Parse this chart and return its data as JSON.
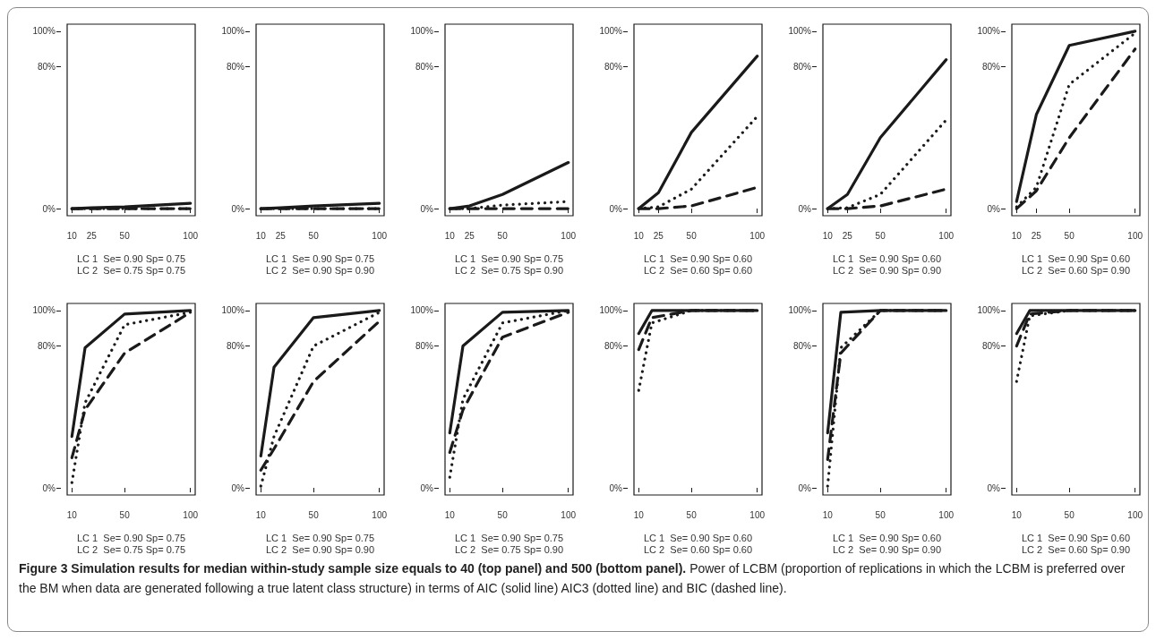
{
  "chart_data": [
    {
      "type": "line",
      "xlabel": "LC 1  Se= 0.90 Sp= 0.75\nLC 2  Se= 0.75 Sp= 0.75",
      "x": [
        10,
        25,
        50,
        100
      ],
      "xlim": [
        6.4,
        103.6
      ],
      "ylim": [
        -4,
        104
      ],
      "xticks": [
        10,
        25,
        50,
        100
      ],
      "yticks": [
        {
          "value": 0,
          "label": "0%"
        },
        {
          "value": 80,
          "label": "80%"
        },
        {
          "value": 100,
          "label": "100%"
        }
      ],
      "grid": false,
      "marker": "none",
      "series": [
        {
          "color": "#1a1a1a",
          "line_style": "solid",
          "values": [
            0,
            0.5,
            1,
            3
          ]
        },
        {
          "color": "#1a1a1a",
          "line_style": "dotted",
          "values": [
            0,
            0,
            0,
            0
          ]
        },
        {
          "color": "#1a1a1a",
          "line_style": "dashed",
          "values": [
            0,
            0,
            0,
            0
          ]
        }
      ]
    },
    {
      "type": "line",
      "xlabel": "LC 1  Se= 0.90 Sp= 0.75\nLC 2  Se= 0.90 Sp= 0.90",
      "x": [
        10,
        25,
        50,
        100
      ],
      "xlim": [
        6.4,
        103.6
      ],
      "ylim": [
        -4,
        104
      ],
      "xticks": [
        10,
        25,
        50,
        100
      ],
      "yticks": [
        {
          "value": 0,
          "label": "0%"
        },
        {
          "value": 80,
          "label": "80%"
        },
        {
          "value": 100,
          "label": "100%"
        }
      ],
      "grid": false,
      "marker": "none",
      "series": [
        {
          "color": "#1a1a1a",
          "line_style": "solid",
          "values": [
            0,
            0.5,
            1.5,
            3
          ]
        },
        {
          "color": "#1a1a1a",
          "line_style": "dotted",
          "values": [
            0,
            0,
            0,
            0
          ]
        },
        {
          "color": "#1a1a1a",
          "line_style": "dashed",
          "values": [
            0,
            0,
            0,
            0
          ]
        }
      ]
    },
    {
      "type": "line",
      "xlabel": "LC 1  Se= 0.90 Sp= 0.75\nLC 2  Se= 0.75 Sp= 0.90",
      "x": [
        10,
        25,
        50,
        100
      ],
      "xlim": [
        6.4,
        103.6
      ],
      "ylim": [
        -4,
        104
      ],
      "xticks": [
        10,
        25,
        50,
        100
      ],
      "yticks": [
        {
          "value": 0,
          "label": "0%"
        },
        {
          "value": 80,
          "label": "80%"
        },
        {
          "value": 100,
          "label": "100%"
        }
      ],
      "grid": false,
      "marker": "none",
      "series": [
        {
          "color": "#1a1a1a",
          "line_style": "solid",
          "values": [
            0,
            1.5,
            8,
            26
          ]
        },
        {
          "color": "#1a1a1a",
          "line_style": "dotted",
          "values": [
            0,
            0,
            2,
            4
          ]
        },
        {
          "color": "#1a1a1a",
          "line_style": "dashed",
          "values": [
            0,
            0,
            0,
            0
          ]
        }
      ]
    },
    {
      "type": "line",
      "xlabel": "LC 1  Se= 0.90 Sp= 0.60\nLC 2  Se= 0.60 Sp= 0.60",
      "x": [
        10,
        25,
        50,
        100
      ],
      "xlim": [
        6.4,
        103.6
      ],
      "ylim": [
        -4,
        104
      ],
      "xticks": [
        10,
        25,
        50,
        100
      ],
      "yticks": [
        {
          "value": 0,
          "label": "0%"
        },
        {
          "value": 80,
          "label": "80%"
        },
        {
          "value": 100,
          "label": "100%"
        }
      ],
      "grid": false,
      "marker": "none",
      "series": [
        {
          "color": "#1a1a1a",
          "line_style": "solid",
          "values": [
            0,
            9,
            43,
            86
          ]
        },
        {
          "color": "#1a1a1a",
          "line_style": "dotted",
          "values": [
            0,
            1,
            11,
            52
          ]
        },
        {
          "color": "#1a1a1a",
          "line_style": "dashed",
          "values": [
            0,
            0,
            1.5,
            12
          ]
        }
      ]
    },
    {
      "type": "line",
      "xlabel": "LC 1  Se= 0.90 Sp= 0.60\nLC 2  Se= 0.90 Sp= 0.90",
      "x": [
        10,
        25,
        50,
        100
      ],
      "xlim": [
        6.4,
        103.6
      ],
      "ylim": [
        -4,
        104
      ],
      "xticks": [
        10,
        25,
        50,
        100
      ],
      "yticks": [
        {
          "value": 0,
          "label": "0%"
        },
        {
          "value": 80,
          "label": "80%"
        },
        {
          "value": 100,
          "label": "100%"
        }
      ],
      "grid": false,
      "marker": "none",
      "series": [
        {
          "color": "#1a1a1a",
          "line_style": "solid",
          "values": [
            0,
            8,
            40,
            84
          ]
        },
        {
          "color": "#1a1a1a",
          "line_style": "dotted",
          "values": [
            0,
            0.5,
            8,
            50
          ]
        },
        {
          "color": "#1a1a1a",
          "line_style": "dashed",
          "values": [
            0,
            0,
            1.5,
            11
          ]
        }
      ]
    },
    {
      "type": "line",
      "xlabel": "LC 1  Se= 0.90 Sp= 0.60\nLC 2  Se= 0.60 Sp= 0.90",
      "x": [
        10,
        25,
        50,
        100
      ],
      "xlim": [
        6.4,
        103.6
      ],
      "ylim": [
        -4,
        104
      ],
      "xticks": [
        10,
        25,
        50,
        100
      ],
      "yticks": [
        {
          "value": 0,
          "label": "0%"
        },
        {
          "value": 80,
          "label": "80%"
        },
        {
          "value": 100,
          "label": "100%"
        }
      ],
      "grid": false,
      "marker": "none",
      "series": [
        {
          "color": "#1a1a1a",
          "line_style": "solid",
          "values": [
            4,
            53,
            92,
            100
          ]
        },
        {
          "color": "#1a1a1a",
          "line_style": "dotted",
          "values": [
            1,
            12,
            70,
            99
          ]
        },
        {
          "color": "#1a1a1a",
          "line_style": "dashed",
          "values": [
            0,
            10,
            40,
            90
          ]
        }
      ]
    },
    {
      "type": "line",
      "xlabel": "LC 1  Se= 0.90 Sp= 0.75\nLC 2  Se= 0.75 Sp= 0.75",
      "x": [
        10,
        20,
        50,
        100
      ],
      "xlim": [
        6.4,
        103.6
      ],
      "ylim": [
        -4,
        104
      ],
      "xticks": [
        10,
        50,
        100
      ],
      "yticks": [
        {
          "value": 0,
          "label": "0%"
        },
        {
          "value": 80,
          "label": "80%"
        },
        {
          "value": 100,
          "label": "100%"
        }
      ],
      "grid": false,
      "marker": "none",
      "series": [
        {
          "color": "#1a1a1a",
          "line_style": "solid",
          "values": [
            29,
            79,
            98,
            100
          ]
        },
        {
          "color": "#1a1a1a",
          "line_style": "dotted",
          "values": [
            3,
            48,
            92,
            99
          ]
        },
        {
          "color": "#1a1a1a",
          "line_style": "dashed",
          "values": [
            17,
            44,
            76,
            99
          ]
        }
      ]
    },
    {
      "type": "line",
      "xlabel": "LC 1  Se= 0.90 Sp= 0.75\nLC 2  Se= 0.90 Sp= 0.90",
      "x": [
        10,
        20,
        50,
        100
      ],
      "xlim": [
        6.4,
        103.6
      ],
      "ylim": [
        -4,
        104
      ],
      "xticks": [
        10,
        50,
        100
      ],
      "yticks": [
        {
          "value": 0,
          "label": "0%"
        },
        {
          "value": 80,
          "label": "80%"
        },
        {
          "value": 100,
          "label": "100%"
        }
      ],
      "grid": false,
      "marker": "none",
      "series": [
        {
          "color": "#1a1a1a",
          "line_style": "solid",
          "values": [
            18,
            68,
            96,
            100
          ]
        },
        {
          "color": "#1a1a1a",
          "line_style": "dotted",
          "values": [
            1,
            29,
            80,
            99
          ]
        },
        {
          "color": "#1a1a1a",
          "line_style": "dashed",
          "values": [
            10,
            22,
            60,
            94
          ]
        }
      ]
    },
    {
      "type": "line",
      "xlabel": "LC 1  Se= 0.90 Sp= 0.75\nLC 2  Se= 0.75 Sp= 0.90",
      "x": [
        10,
        20,
        50,
        100
      ],
      "xlim": [
        6.4,
        103.6
      ],
      "ylim": [
        -4,
        104
      ],
      "xticks": [
        10,
        50,
        100
      ],
      "yticks": [
        {
          "value": 0,
          "label": "0%"
        },
        {
          "value": 80,
          "label": "80%"
        },
        {
          "value": 100,
          "label": "100%"
        }
      ],
      "grid": false,
      "marker": "none",
      "series": [
        {
          "color": "#1a1a1a",
          "line_style": "solid",
          "values": [
            31,
            80,
            99,
            100
          ]
        },
        {
          "color": "#1a1a1a",
          "line_style": "dotted",
          "values": [
            6,
            50,
            93,
            100
          ]
        },
        {
          "color": "#1a1a1a",
          "line_style": "dashed",
          "values": [
            20,
            44,
            85,
            99
          ]
        }
      ]
    },
    {
      "type": "line",
      "xlabel": "LC 1  Se= 0.90 Sp= 0.60\nLC 2  Se= 0.60 Sp= 0.60",
      "x": [
        10,
        20,
        50,
        100
      ],
      "xlim": [
        6.4,
        103.6
      ],
      "ylim": [
        -4,
        104
      ],
      "xticks": [
        10,
        50,
        100
      ],
      "yticks": [
        {
          "value": 0,
          "label": "0%"
        },
        {
          "value": 80,
          "label": "80%"
        },
        {
          "value": 100,
          "label": "100%"
        }
      ],
      "grid": false,
      "marker": "none",
      "series": [
        {
          "color": "#1a1a1a",
          "line_style": "solid",
          "values": [
            87,
            100,
            100,
            100
          ]
        },
        {
          "color": "#1a1a1a",
          "line_style": "dotted",
          "values": [
            55,
            93,
            100,
            100
          ]
        },
        {
          "color": "#1a1a1a",
          "line_style": "dashed",
          "values": [
            78,
            96,
            100,
            100
          ]
        }
      ]
    },
    {
      "type": "line",
      "xlabel": "LC 1  Se= 0.90 Sp= 0.60\nLC 2  Se= 0.90 Sp= 0.90",
      "x": [
        10,
        20,
        50,
        100
      ],
      "xlim": [
        6.4,
        103.6
      ],
      "ylim": [
        -4,
        104
      ],
      "xticks": [
        10,
        50,
        100
      ],
      "yticks": [
        {
          "value": 0,
          "label": "0%"
        },
        {
          "value": 80,
          "label": "80%"
        },
        {
          "value": 100,
          "label": "100%"
        }
      ],
      "grid": false,
      "marker": "none",
      "series": [
        {
          "color": "#1a1a1a",
          "line_style": "solid",
          "values": [
            31,
            99,
            100,
            100
          ]
        },
        {
          "color": "#1a1a1a",
          "line_style": "dotted",
          "values": [
            1,
            79,
            100,
            100
          ]
        },
        {
          "color": "#1a1a1a",
          "line_style": "dashed",
          "values": [
            16,
            76,
            100,
            100
          ]
        }
      ]
    },
    {
      "type": "line",
      "xlabel": "LC 1  Se= 0.90 Sp= 0.60\nLC 2  Se= 0.60 Sp= 0.90",
      "x": [
        10,
        20,
        50,
        100
      ],
      "xlim": [
        6.4,
        103.6
      ],
      "ylim": [
        -4,
        104
      ],
      "xticks": [
        10,
        50,
        100
      ],
      "yticks": [
        {
          "value": 0,
          "label": "0%"
        },
        {
          "value": 80,
          "label": "80%"
        },
        {
          "value": 100,
          "label": "100%"
        }
      ],
      "grid": false,
      "marker": "none",
      "series": [
        {
          "color": "#1a1a1a",
          "line_style": "solid",
          "values": [
            87,
            100,
            100,
            100
          ]
        },
        {
          "color": "#1a1a1a",
          "line_style": "dotted",
          "values": [
            60,
            97,
            100,
            100
          ]
        },
        {
          "color": "#1a1a1a",
          "line_style": "dashed",
          "values": [
            80,
            98,
            100,
            100
          ]
        }
      ],
      "annotations": [
        "Figure 3 Simulation results for median within-study sample size equals to 40 (top panel) and 500 (bottom panel).",
        "Power of LCBM (proportion of replications in which the LCBM is preferred over the BM when data are generated following a true latent class structure) in terms of AIC (solid line) AIC3 (dotted line) and BIC (dashed line)."
      ]
    }
  ]
}
